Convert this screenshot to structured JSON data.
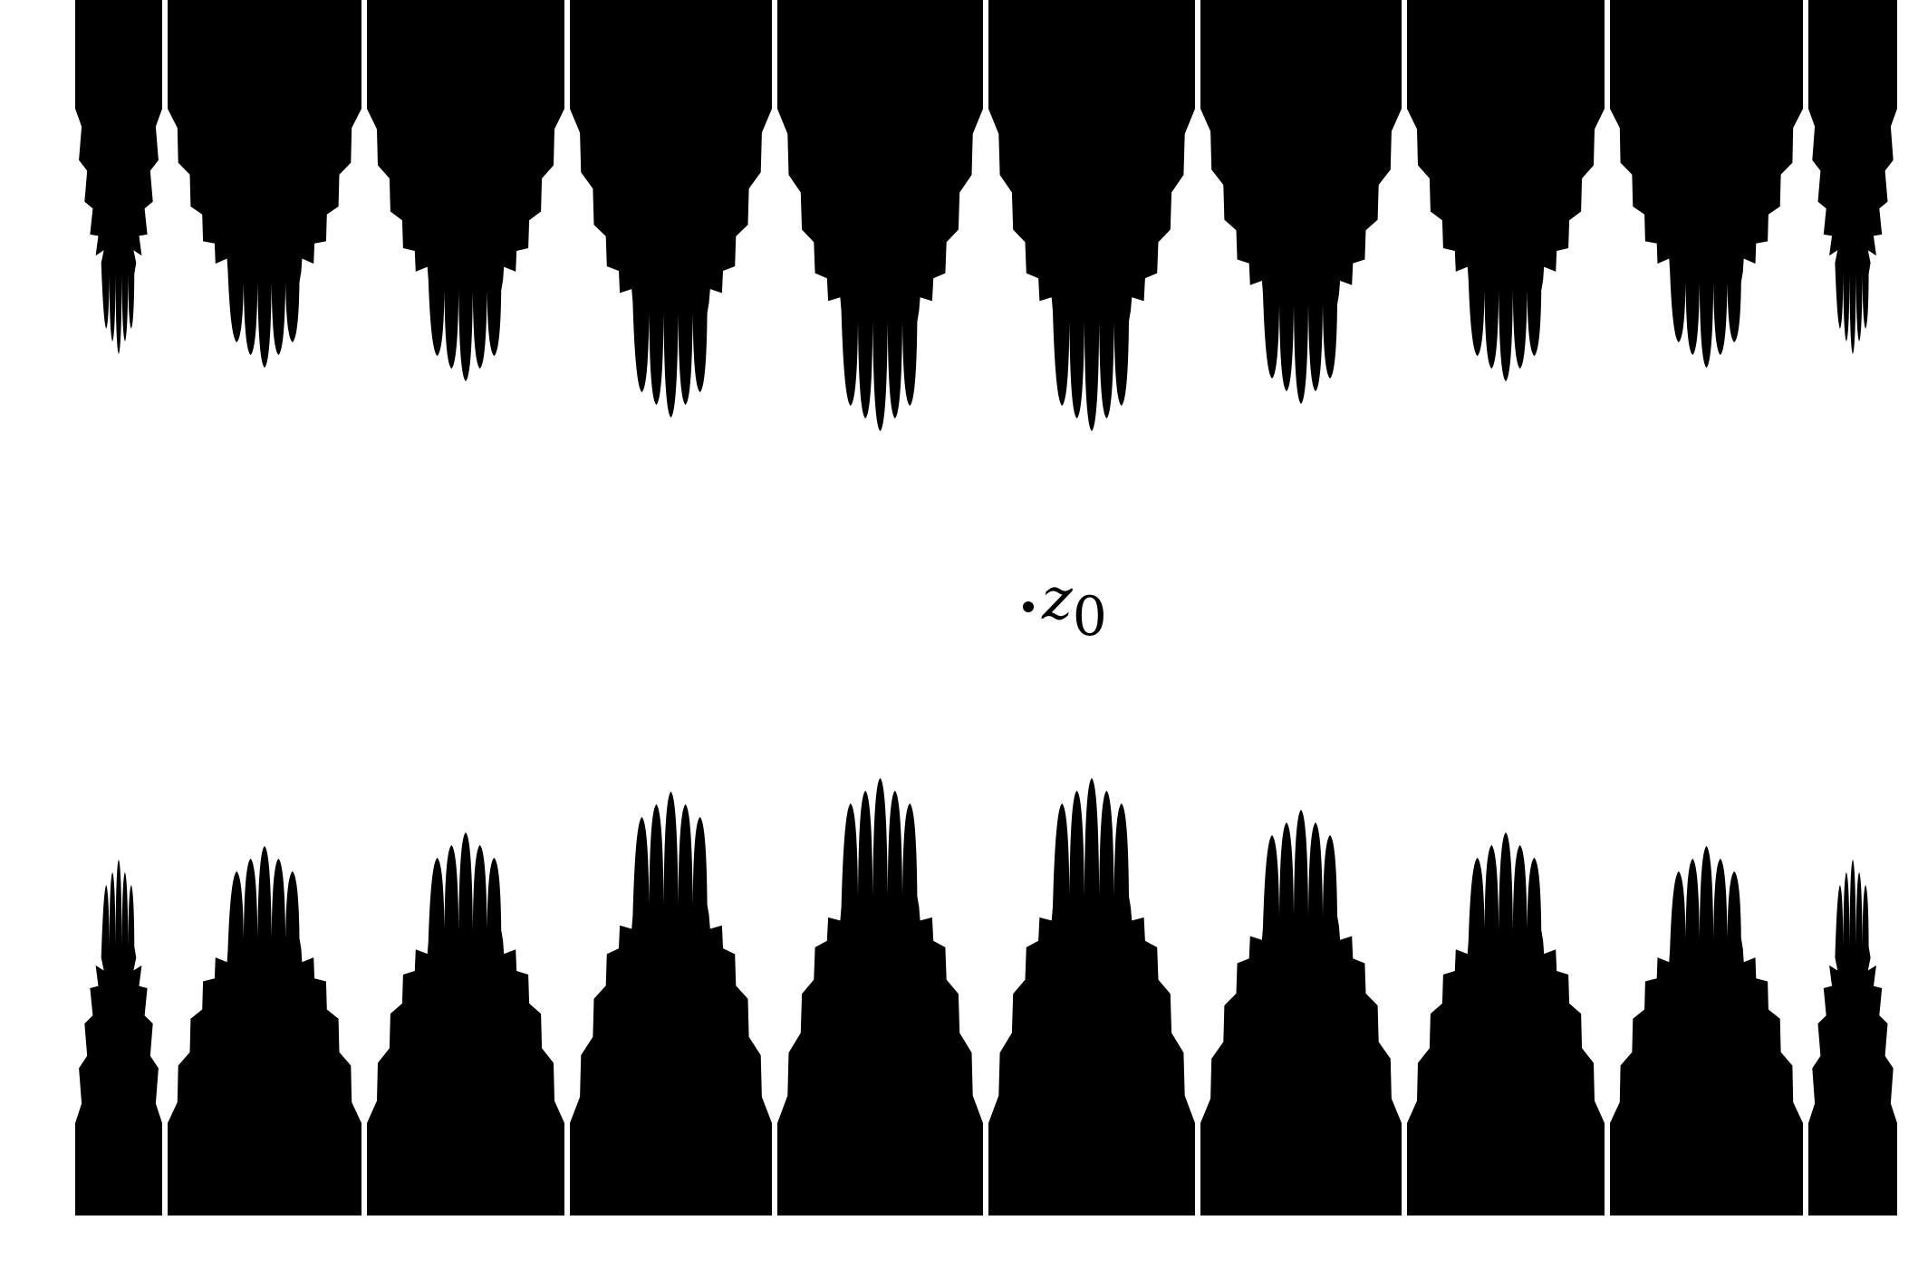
{
  "figure": {
    "background_color": "#ffffff",
    "fill_color": "#000000",
    "top_band": {
      "name": "top-fractal-band",
      "lobe_count": 9
    },
    "bottom_band": {
      "name": "bottom-fractal-band",
      "lobe_count": 9
    }
  },
  "point": {
    "label_base": "z",
    "label_subscript": "0"
  }
}
